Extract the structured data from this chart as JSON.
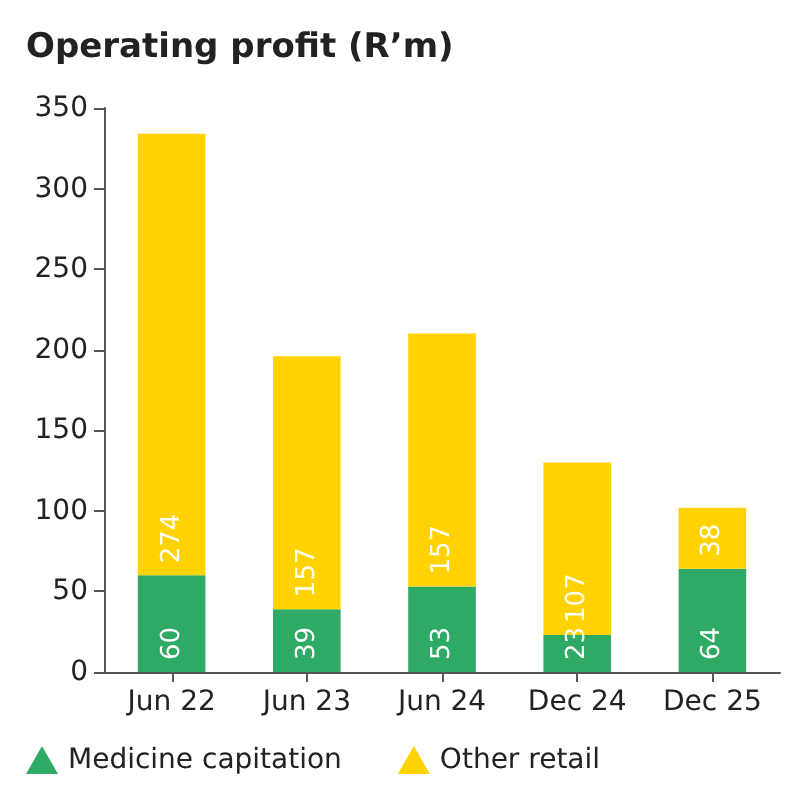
{
  "chart_data": {
    "type": "bar",
    "title": "Operating profit (R’m)",
    "categories": [
      "Jun 22",
      "Jun 23",
      "Jun 24",
      "Dec 24",
      "Dec 25"
    ],
    "series": [
      {
        "name": "Medicine capitation",
        "color": "#2eaa64",
        "values": [
          60,
          39,
          53,
          23,
          64
        ]
      },
      {
        "name": "Other retail",
        "color": "#ffd200",
        "values": [
          274,
          157,
          157,
          107,
          38
        ]
      }
    ],
    "stacked": true,
    "data_labels": true,
    "ylim": [
      0,
      350
    ],
    "yticks": [
      0,
      50,
      100,
      150,
      200,
      250,
      300,
      350
    ],
    "grid": false,
    "legend": "bottom"
  }
}
